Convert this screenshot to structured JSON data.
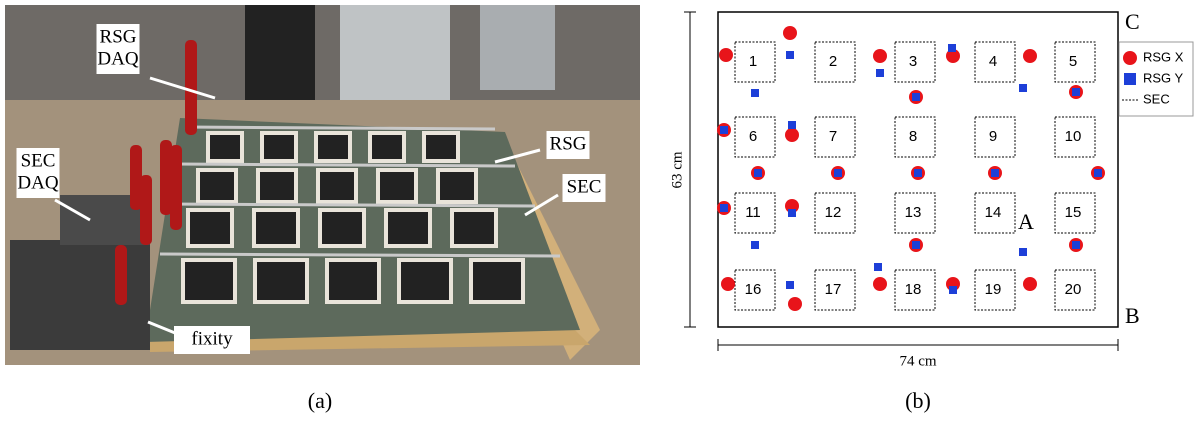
{
  "panel_a": {
    "labels": [
      {
        "lines": [
          "RSG",
          "DAQ"
        ]
      },
      {
        "lines": [
          "SEC",
          "DAQ"
        ]
      },
      {
        "lines": [
          "RSG"
        ]
      },
      {
        "lines": [
          "SEC"
        ]
      },
      {
        "lines": [
          "fixity"
        ]
      }
    ],
    "caption": "(a)"
  },
  "panel_b": {
    "sensors": [
      "1",
      "2",
      "3",
      "4",
      "5",
      "6",
      "7",
      "8",
      "9",
      "10",
      "11",
      "12",
      "13",
      "14",
      "15",
      "16",
      "17",
      "18",
      "19",
      "20"
    ],
    "corner_labels": [
      "C",
      "A",
      "B"
    ],
    "height_label": "63 cm",
    "width_label": "74 cm",
    "legend": [
      "RSG X",
      "RSG Y",
      "SEC"
    ],
    "caption": "(b)"
  }
}
